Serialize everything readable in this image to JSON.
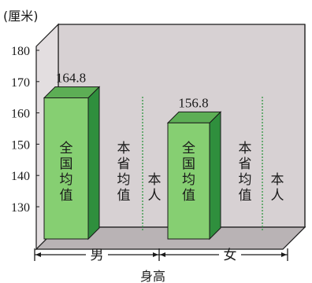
{
  "chart_data": {
    "type": "bar",
    "unit_label": "(厘米)",
    "ylim": [
      130,
      180
    ],
    "yticks": [
      180,
      170,
      160,
      150,
      140,
      130
    ],
    "xlabel": "身高",
    "groups": [
      {
        "name": "男",
        "bars": [
          {
            "label": "全国均值",
            "value": 164.8,
            "value_label": "164.8",
            "drawn": true
          },
          {
            "label": "本省均值",
            "value": null,
            "drawn": false
          },
          {
            "label": "本人",
            "value": null,
            "drawn": false
          }
        ]
      },
      {
        "name": "女",
        "bars": [
          {
            "label": "全国均值",
            "value": 156.8,
            "value_label": "156.8",
            "drawn": true
          },
          {
            "label": "本省均值",
            "value": null,
            "drawn": false
          },
          {
            "label": "本人",
            "value": null,
            "drawn": false
          }
        ]
      }
    ],
    "colors": {
      "background": "#d7d1d3",
      "floor": "#b9b3b5",
      "bar_front": "#86cf72",
      "bar_side": "#2f8f3d",
      "bar_top": "#5dae55",
      "outline": "#1a1a1a",
      "dotted_line": "#3a9a4a"
    }
  }
}
